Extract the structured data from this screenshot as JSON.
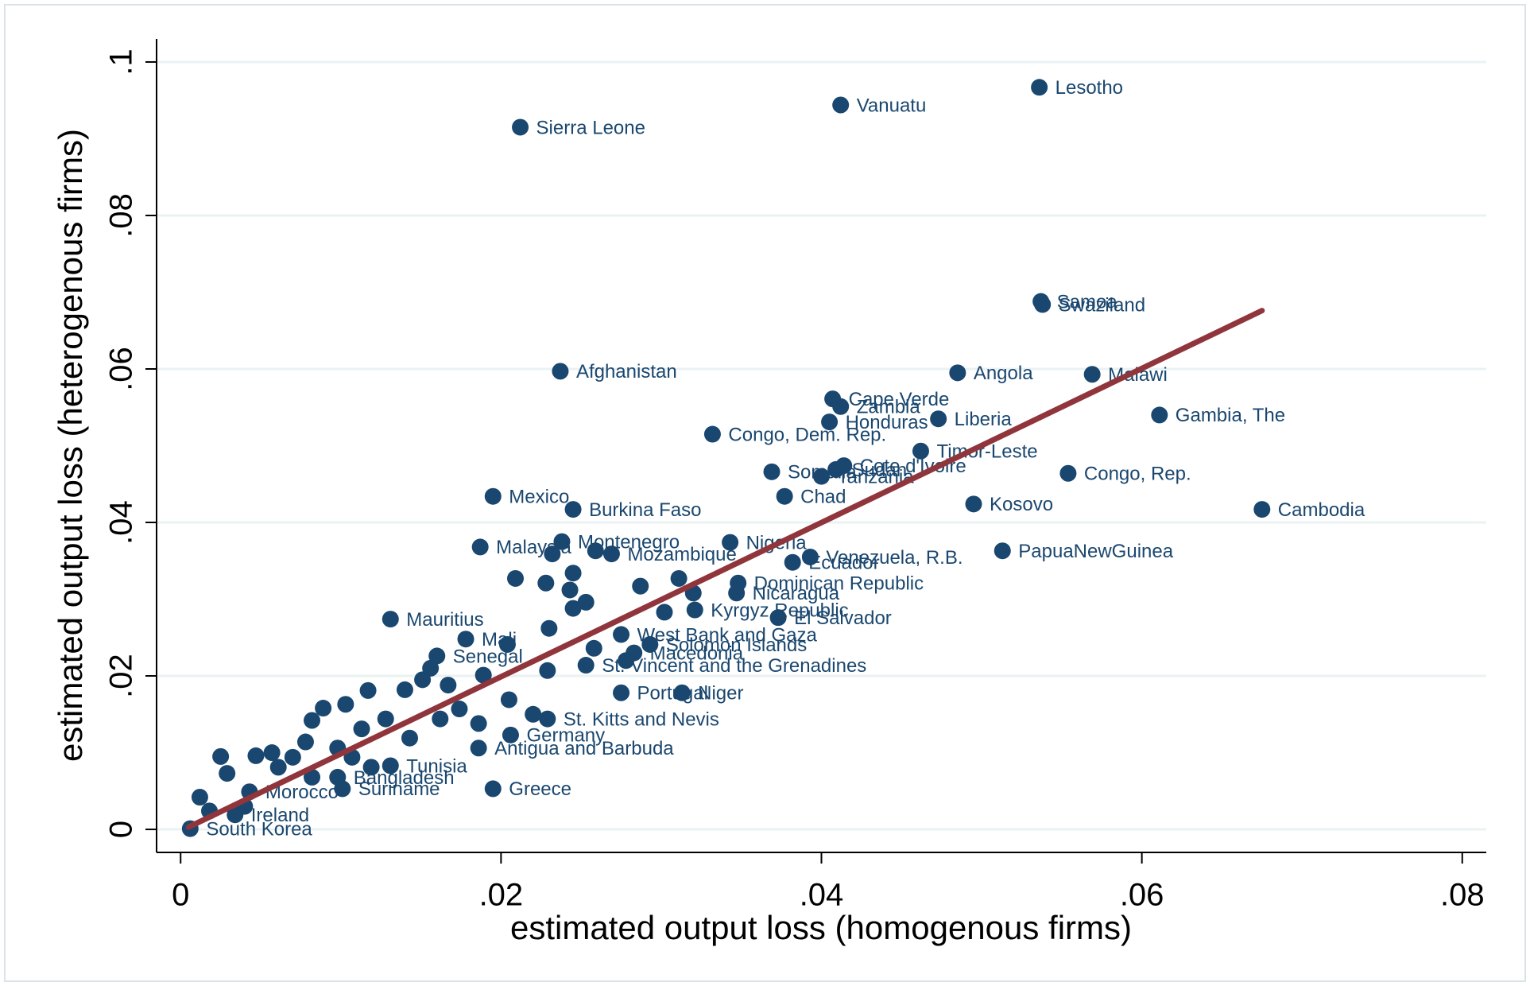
{
  "chart_data": {
    "type": "scatter",
    "x_label": "estimated output loss (homogenous firms)",
    "y_label": "estimated output loss (heterogenous firms)",
    "xlim": [
      -0.0015,
      0.0815
    ],
    "ylim": [
      -0.003,
      0.103
    ],
    "xticks": [
      0,
      {
        "value": 0.02,
        "label": ".02"
      },
      {
        "value": 0.04,
        "label": ".04"
      },
      {
        "value": 0.06,
        "label": ".06"
      },
      {
        "value": 0.08,
        "label": ".08"
      }
    ],
    "yticks": [
      0,
      {
        "value": 0.02,
        "label": ".02"
      },
      {
        "value": 0.04,
        "label": ".04"
      },
      {
        "value": 0.06,
        "label": ".06"
      },
      {
        "value": 0.08,
        "label": ".08"
      },
      {
        "value": 0.1,
        "label": ".1"
      }
    ],
    "grid": true,
    "points": {
      "color": "#1a476f",
      "x": [
        0.0536,
        0.0412,
        0.0212,
        0.0537,
        0.0538,
        0.0237,
        0.0485,
        0.0569,
        0.0407,
        0.0412,
        0.0405,
        0.0473,
        0.0611,
        0.0332,
        0.0462,
        0.0414,
        0.0409,
        0.04,
        0.0369,
        0.0554,
        0.0195,
        0.0377,
        0.0245,
        0.0495,
        0.0675,
        0.0238,
        0.0343,
        0.0187,
        0.0269,
        0.0393,
        0.0382,
        0.0513,
        0.0131,
        0.0373,
        0.0321,
        0.0275,
        0.0293,
        0.0283,
        0.0313,
        0.0275,
        0.0229,
        0.0206,
        0.0195,
        0.0006,
        0.0101,
        0.0098,
        0.0043,
        0.0034,
        0.016,
        0.0178,
        0.0348,
        0.0347,
        0.0253,
        0.0186,
        0.0131,
        0.0025,
        0.0029,
        0.0012,
        0.0047,
        0.0057,
        0.0078,
        0.0082,
        0.0089,
        0.0103,
        0.0117,
        0.0113,
        0.0128,
        0.014,
        0.0151,
        0.0156,
        0.0167,
        0.0174,
        0.0189,
        0.0205,
        0.022,
        0.0229,
        0.0209,
        0.0228,
        0.0245,
        0.0243,
        0.0253,
        0.0245,
        0.023,
        0.0258,
        0.0287,
        0.0302,
        0.0311,
        0.032,
        0.0204,
        0.0098,
        0.0119,
        0.0143,
        0.0162,
        0.0186,
        0.007,
        0.0061,
        0.0082,
        0.0107,
        0.004,
        0.0018,
        0.0232,
        0.0259,
        0.0278
      ],
      "values": [
        0.0967,
        0.0944,
        0.0915,
        0.0688,
        0.0684,
        0.0597,
        0.0595,
        0.0593,
        0.0561,
        0.0551,
        0.0531,
        0.0535,
        0.054,
        0.0515,
        0.0493,
        0.0474,
        0.0469,
        0.046,
        0.0466,
        0.0464,
        0.0434,
        0.0434,
        0.0417,
        0.0424,
        0.0417,
        0.0375,
        0.0374,
        0.0368,
        0.0359,
        0.0355,
        0.0348,
        0.0363,
        0.0274,
        0.0276,
        0.0286,
        0.0254,
        0.0241,
        0.023,
        0.0178,
        0.0178,
        0.0144,
        0.0123,
        0.0053,
        0.0001,
        0.0053,
        0.0068,
        0.0049,
        0.0019,
        0.0226,
        0.0248,
        0.0321,
        0.0308,
        0.0214,
        0.0106,
        0.0083,
        0.0095,
        0.0073,
        0.0042,
        0.0096,
        0.01,
        0.0114,
        0.0142,
        0.0158,
        0.0163,
        0.0181,
        0.0131,
        0.0144,
        0.0182,
        0.0195,
        0.021,
        0.0188,
        0.0157,
        0.0201,
        0.0169,
        0.015,
        0.0207,
        0.0327,
        0.0321,
        0.0334,
        0.0312,
        0.0296,
        0.0288,
        0.0262,
        0.0236,
        0.0317,
        0.0283,
        0.0327,
        0.0308,
        0.0241,
        0.0106,
        0.0081,
        0.0119,
        0.0144,
        0.0138,
        0.0094,
        0.0081,
        0.0068,
        0.0094,
        0.003,
        0.0024,
        0.0359,
        0.0363,
        0.022
      ],
      "labels": [
        "Lesotho",
        "Vanuatu",
        "Sierra Leone",
        "Samoa",
        "Swaziland",
        "Afghanistan",
        "Angola",
        "Malawi",
        "Cape Verde",
        "Zambia",
        "Honduras",
        "Liberia",
        "Gambia, The",
        "Congo, Dem. Rep.",
        "Timor-Leste",
        "Cote d'Ivoire",
        "Sudan",
        "Tanzania",
        "Somalia",
        "Congo, Rep.",
        "Mexico",
        "Chad",
        "Burkina Faso",
        "Kosovo",
        "Cambodia",
        "Montenegro",
        "Nigeria",
        "Malaysia",
        "Mozambique",
        "Venezuela, R.B.",
        "Ecuador",
        "PapuaNewGuinea",
        "Mauritius",
        "El Salvador",
        "Kyrgyz Republic",
        "West Bank and Gaza",
        "Solomon Islands",
        "Macedonia",
        "Niger",
        "Portugal",
        "St. Kitts and Nevis",
        "Germany",
        "Greece",
        "South Korea",
        "Suriname",
        "Bangladesh",
        "Morocco",
        "Ireland",
        "Senegal",
        "Mali",
        "Dominican Republic",
        "Nicaragua",
        "St. Vincent and the Grenadines",
        "Antigua and Barbuda",
        "Tunisia",
        null,
        null,
        null,
        null,
        null,
        null,
        null,
        null,
        null,
        null,
        null,
        null,
        null,
        null,
        null,
        null,
        null,
        null,
        null,
        null,
        null,
        null,
        null,
        null,
        null,
        null,
        null,
        null,
        null,
        null,
        null,
        null,
        null,
        null,
        null,
        null,
        null,
        null,
        null,
        null,
        null,
        null,
        null,
        null,
        null,
        null,
        null,
        null
      ]
    },
    "fit_line": {
      "color": "#90353b",
      "x": [
        0.0005,
        0.0675
      ],
      "values": [
        0.0003,
        0.0676
      ]
    }
  }
}
